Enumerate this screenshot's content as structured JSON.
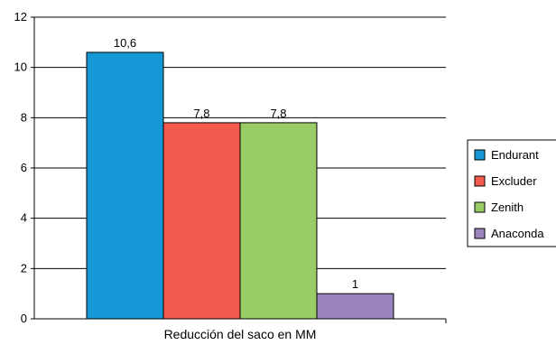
{
  "chart_data": {
    "type": "bar",
    "xlabel": "Reducción del saco en MM",
    "ylabel": "",
    "ylim": [
      0,
      12
    ],
    "yticks": [
      "0",
      "2",
      "4",
      "6",
      "8",
      "10",
      "12"
    ],
    "grid": true,
    "legend_position": "right",
    "series": [
      {
        "name": "Endurant",
        "value": 10.6,
        "label": "10,6",
        "color": "#1598d5"
      },
      {
        "name": "Excluder",
        "value": 7.8,
        "label": "7,8",
        "color": "#f15a4d"
      },
      {
        "name": "Zenith",
        "value": 7.8,
        "label": "7,8",
        "color": "#99cc66"
      },
      {
        "name": "Anaconda",
        "value": 1,
        "label": "1",
        "color": "#9b84be"
      }
    ]
  }
}
